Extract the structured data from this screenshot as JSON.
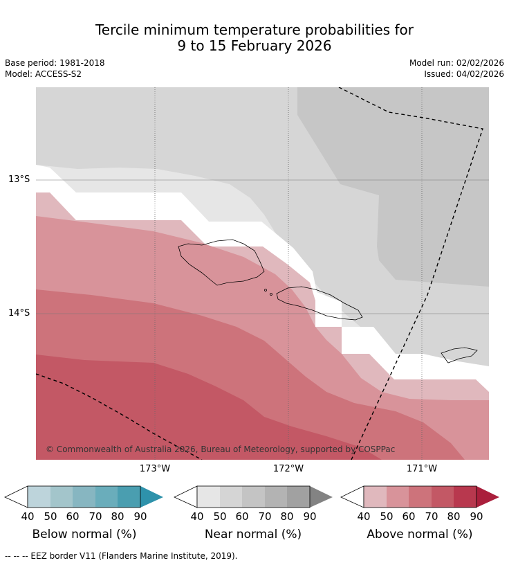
{
  "title_line1": "Tercile minimum temperature probabilities for",
  "title_line2": "9 to 15 February 2026",
  "meta": {
    "base_period": "Base period: 1981-2018",
    "model": "Model: ACCESS-S2",
    "model_run": "Model run: 02/02/2026",
    "issued": "Issued: 04/02/2026"
  },
  "map": {
    "lat_labels": [
      "13°S",
      "14°S"
    ],
    "lon_labels": [
      "173°W",
      "172°W",
      "171°W"
    ],
    "copyright": "© Commonwealth of Australia 2026, Bureau of Meteorology, supported by COSPPac"
  },
  "colorbars": [
    {
      "name": "below",
      "title": "Below normal (%)",
      "ticks": [
        "40",
        "50",
        "60",
        "70",
        "80",
        "90"
      ],
      "colors": [
        "#bdd4db",
        "#a3c5cb",
        "#87b6c1",
        "#6aadbb",
        "#4a9eb0"
      ],
      "end": "#2e92ab"
    },
    {
      "name": "near",
      "title": "Near normal (%)",
      "ticks": [
        "40",
        "50",
        "60",
        "70",
        "80",
        "90"
      ],
      "colors": [
        "#e6e6e6",
        "#d5d5d5",
        "#c4c4c4",
        "#b3b3b3",
        "#a1a1a1"
      ],
      "end": "#838383"
    },
    {
      "name": "above",
      "title": "Above normal (%)",
      "ticks": [
        "40",
        "50",
        "60",
        "70",
        "80",
        "90"
      ],
      "colors": [
        "#e0b8bd",
        "#d8939a",
        "#cd737b",
        "#c35865",
        "#b8384e"
      ],
      "end": "#aa1f3c"
    }
  ],
  "footer": "--  --  -- EEZ border V11 (Flanders Marine Institute, 2019)."
}
